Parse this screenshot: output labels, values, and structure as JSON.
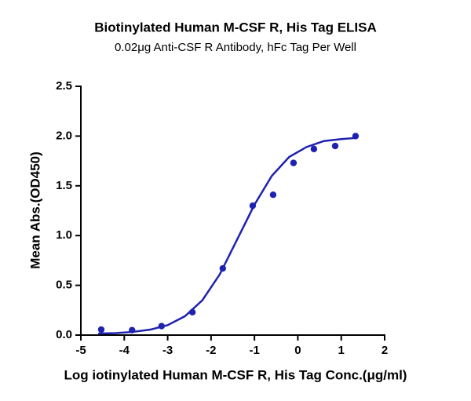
{
  "chart_data": {
    "type": "scatter",
    "title": "Biotinylated Human M-CSF R, His Tag ELISA",
    "subtitle": "0.02μg Anti-CSF R Antibody, hFc Tag Per Well",
    "x_label": "Log iotinylated Human M-CSF R, His Tag Conc.(μg/ml)",
    "y_label": "Mean Abs.(OD450)",
    "xlim": [
      -5,
      2
    ],
    "xticks": [
      -5,
      -4,
      -3,
      -2,
      -1,
      0,
      1,
      2
    ],
    "ylim": [
      0,
      2.5
    ],
    "yticks": [
      {
        "value": 0,
        "label": "0.0"
      },
      0.5,
      {
        "value": 1,
        "label": "1.0"
      },
      1.5,
      {
        "value": 2,
        "label": "2.0"
      },
      2.5
    ],
    "series": [
      {
        "type": "scatter",
        "color": "#1f22b0",
        "x": [
          -4.53,
          -3.82,
          -3.14,
          -2.43,
          -1.73,
          -1.04,
          -0.57,
          -0.1,
          0.37,
          0.86,
          1.33
        ],
        "values": [
          0.055,
          0.05,
          0.09,
          0.23,
          0.67,
          1.3,
          1.41,
          1.73,
          1.87,
          1.9,
          2.0
        ]
      },
      {
        "type": "line",
        "color": "#1f22b0",
        "x": [
          -4.6,
          -4.2,
          -3.8,
          -3.4,
          -3.0,
          -2.6,
          -2.2,
          -1.8,
          -1.4,
          -1.0,
          -0.6,
          -0.2,
          0.2,
          0.6,
          1.0,
          1.3
        ],
        "values": [
          0.015,
          0.02,
          0.032,
          0.055,
          0.1,
          0.19,
          0.35,
          0.61,
          0.96,
          1.31,
          1.6,
          1.79,
          1.89,
          1.95,
          1.97,
          1.98
        ]
      }
    ]
  }
}
